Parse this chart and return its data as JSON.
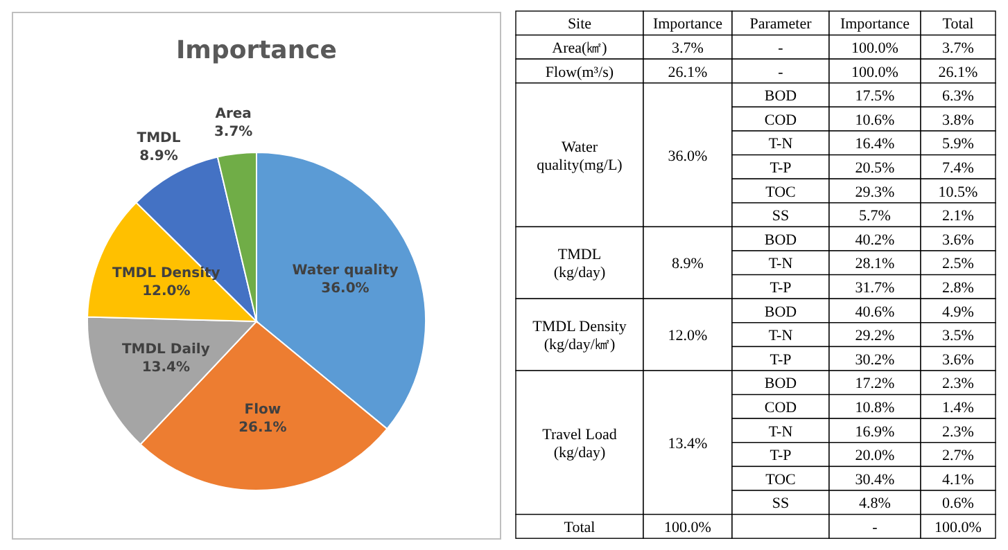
{
  "chart_data": [
    {
      "type": "pie",
      "title": "Importance",
      "categories": [
        "Water quality",
        "Flow",
        "TMDL Daily",
        "TMDL Density",
        "TMDL",
        "Area"
      ],
      "values": [
        36.0,
        26.1,
        13.4,
        12.0,
        8.9,
        3.7
      ],
      "value_labels": [
        "36.0%",
        "26.1%",
        "13.4%",
        "12.0%",
        "8.9%",
        "3.7%"
      ],
      "colors": [
        "#5b9bd5",
        "#ed7d31",
        "#a5a5a5",
        "#ffc000",
        "#4472c4",
        "#70ad47"
      ],
      "legend": false
    },
    {
      "type": "other",
      "categories": [
        "Site",
        "Importance",
        "Parameter",
        "Importance",
        "Total"
      ],
      "cells": [
        [
          "Area(㎢)",
          "3.7%",
          "-",
          "100.0%",
          "3.7%"
        ],
        [
          "Flow(m³/s)",
          "26.1%",
          "-",
          "100.0%",
          "26.1%"
        ],
        [
          "Water quality(mg/L)",
          "36.0%",
          "BOD",
          "17.5%",
          "6.3%"
        ],
        [
          null,
          null,
          "COD",
          "10.6%",
          "3.8%"
        ],
        [
          null,
          null,
          "T-N",
          "16.4%",
          "5.9%"
        ],
        [
          null,
          null,
          "T-P",
          "20.5%",
          "7.4%"
        ],
        [
          null,
          null,
          "TOC",
          "29.3%",
          "10.5%"
        ],
        [
          null,
          null,
          "SS",
          "5.7%",
          "2.1%"
        ],
        [
          "TMDL (kg/day)",
          "8.9%",
          "BOD",
          "40.2%",
          "3.6%"
        ],
        [
          null,
          null,
          "T-N",
          "28.1%",
          "2.5%"
        ],
        [
          null,
          null,
          "T-P",
          "31.7%",
          "2.8%"
        ],
        [
          "TMDL Density (kg/day/㎢)",
          "12.0%",
          "BOD",
          "40.6%",
          "4.9%"
        ],
        [
          null,
          null,
          "T-N",
          "29.2%",
          "3.5%"
        ],
        [
          null,
          null,
          "T-P",
          "30.2%",
          "3.6%"
        ],
        [
          "Travel Load (kg/day)",
          "13.4%",
          "BOD",
          "17.2%",
          "2.3%"
        ],
        [
          null,
          null,
          "COD",
          "10.8%",
          "1.4%"
        ],
        [
          null,
          null,
          "T-N",
          "16.9%",
          "2.3%"
        ],
        [
          null,
          null,
          "T-P",
          "20.0%",
          "2.7%"
        ],
        [
          null,
          null,
          "TOC",
          "30.4%",
          "4.1%"
        ],
        [
          null,
          null,
          "SS",
          "4.8%",
          "0.6%"
        ],
        [
          "Total",
          "100.0%",
          null,
          "-",
          "100.0%"
        ]
      ]
    }
  ]
}
